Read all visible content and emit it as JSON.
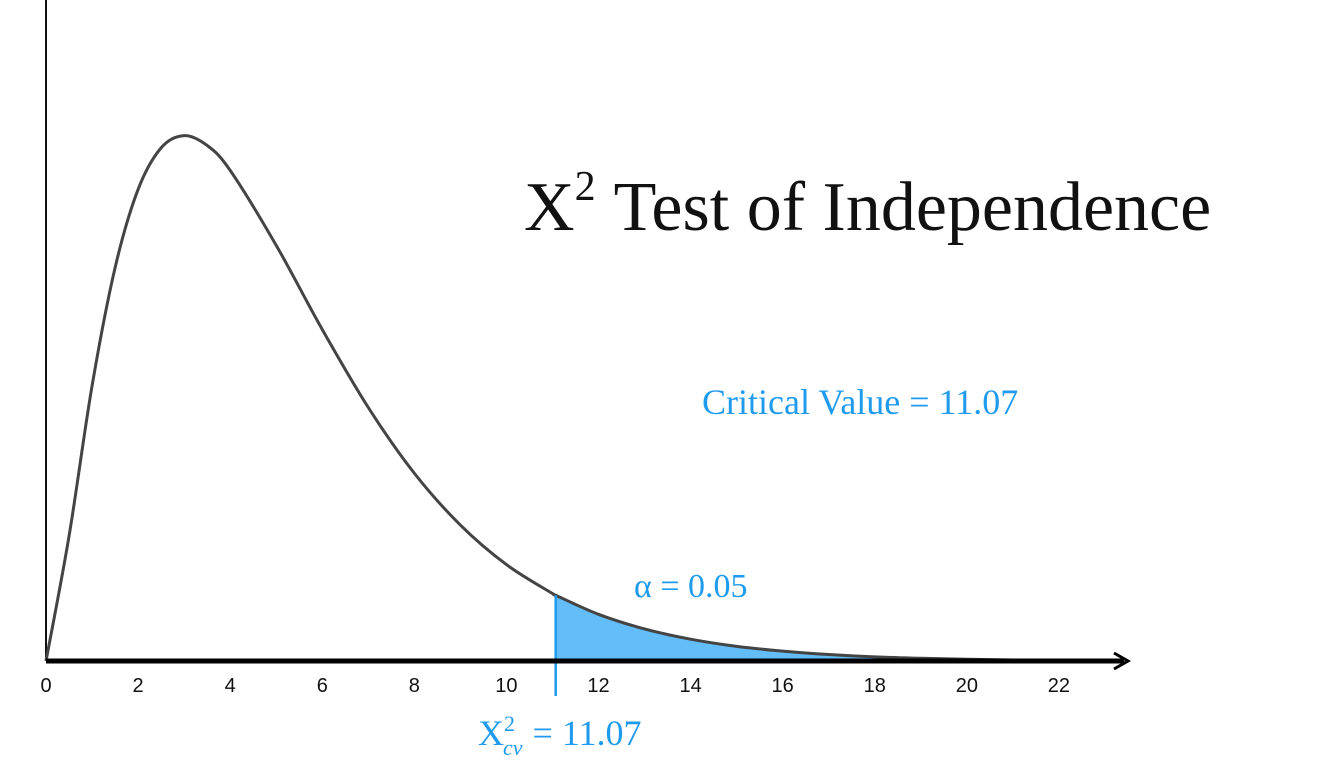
{
  "chart_data": {
    "type": "line",
    "title": {
      "base": "X",
      "sup": "2",
      "rest": "Test of Independence"
    },
    "x": [
      0,
      0.5,
      1,
      1.5,
      2,
      2.5,
      3,
      3.5,
      4,
      5,
      6,
      7,
      8,
      9,
      10,
      11,
      11.07,
      12,
      13,
      14,
      15,
      16,
      17,
      18,
      19,
      20,
      21,
      22,
      23
    ],
    "values": [
      0,
      0.0366,
      0.0807,
      0.1154,
      0.1384,
      0.1506,
      0.1542,
      0.1513,
      0.144,
      0.122,
      0.0973,
      0.0744,
      0.0551,
      0.0399,
      0.0283,
      0.0198,
      0.0193,
      0.0137,
      0.0094,
      0.0064,
      0.0043,
      0.0029,
      0.0019,
      0.0012,
      0.0008,
      0.0005,
      0.0003,
      0.0002,
      0.0001
    ],
    "color": "#444444",
    "critical_value": 11.07,
    "shade_color": "#63bdf8",
    "accent_color": "#1e9bef",
    "xlim": [
      0,
      23.5
    ],
    "ylim": [
      0,
      0.194
    ],
    "xticks": [
      0,
      2,
      4,
      6,
      8,
      10,
      12,
      14,
      16,
      18,
      20,
      22
    ],
    "critical_text": "Critical Value = 11.07",
    "alpha_text": "α = 0.05",
    "critical_label": {
      "base": "X",
      "sup": "2",
      "sub": "cv",
      "rest": "= 11.07"
    }
  }
}
